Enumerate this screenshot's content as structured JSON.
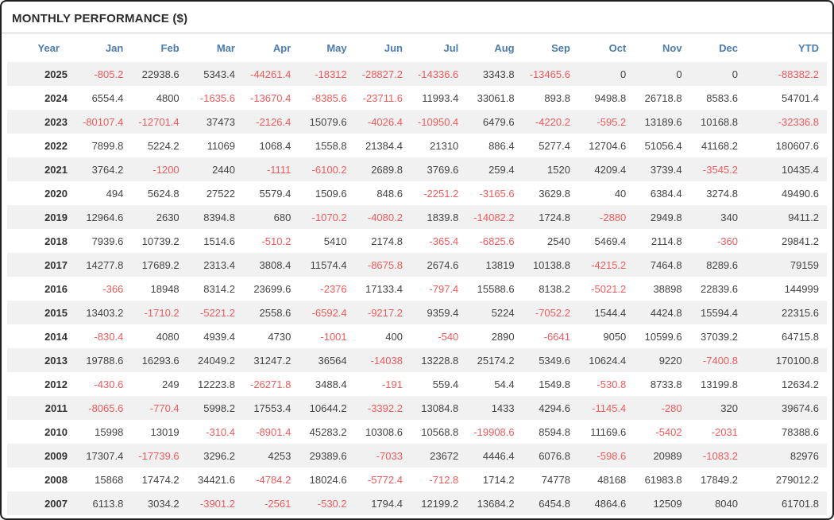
{
  "title": "MONTHLY PERFORMANCE ($)",
  "colors": {
    "header_blue": "#4d7cae",
    "negative_red": "#f15b5b",
    "positive_dark": "#444444",
    "stripe_gray": "#f1f1f1",
    "frame_border": "#1f1f1f"
  },
  "chart_data": {
    "type": "table",
    "title": "MONTHLY PERFORMANCE ($)",
    "columns": [
      "Year",
      "Jan",
      "Feb",
      "Mar",
      "Apr",
      "May",
      "Jun",
      "Jul",
      "Aug",
      "Sep",
      "Oct",
      "Nov",
      "Dec",
      "YTD"
    ],
    "rows": [
      {
        "year": "2025",
        "values": [
          -805.2,
          22938.6,
          5343.4,
          -44261.4,
          -18312,
          -28827.2,
          -14336.6,
          3343.8,
          -13465.6,
          0,
          0,
          0,
          -88382.2
        ]
      },
      {
        "year": "2024",
        "values": [
          6554.4,
          4800,
          -1635.6,
          -13670.4,
          -8385.6,
          -23711.6,
          11993.4,
          33061.8,
          893.8,
          9498.8,
          26718.8,
          8583.6,
          54701.4
        ]
      },
      {
        "year": "2023",
        "values": [
          -80107.4,
          -12701.4,
          37473,
          -2126.4,
          15079.6,
          -4026.4,
          -10950.4,
          6479.6,
          -4220.2,
          -595.2,
          13189.6,
          10168.8,
          -32336.8
        ]
      },
      {
        "year": "2022",
        "values": [
          7899.8,
          5224.2,
          11069,
          1068.4,
          1558.8,
          21384.4,
          21310,
          886.4,
          5277.4,
          12704.6,
          51056.4,
          41168.2,
          180607.6
        ]
      },
      {
        "year": "2021",
        "values": [
          3764.2,
          -1200,
          2440,
          -1111,
          -6100.2,
          2689.8,
          3769.6,
          259.4,
          1520,
          4209.4,
          3739.4,
          -3545.2,
          10435.4
        ]
      },
      {
        "year": "2020",
        "values": [
          494,
          5624.8,
          27522,
          5579.4,
          1509.6,
          848.6,
          -2251.2,
          -3165.6,
          3629.8,
          40,
          6384.4,
          3274.8,
          49490.6
        ]
      },
      {
        "year": "2019",
        "values": [
          12964.6,
          2630,
          8394.8,
          680,
          -1070.2,
          -4080.2,
          1839.8,
          -14082.2,
          1724.8,
          -2880,
          2949.8,
          340,
          9411.2
        ]
      },
      {
        "year": "2018",
        "values": [
          7939.6,
          10739.2,
          1514.6,
          -510.2,
          5410,
          2174.8,
          -365.4,
          -6825.6,
          2540,
          5469.4,
          2114.8,
          -360,
          29841.2
        ]
      },
      {
        "year": "2017",
        "values": [
          14277.8,
          17689.2,
          2313.4,
          3808.4,
          11574.4,
          -8675.8,
          2674.6,
          13819,
          10138.8,
          -4215.2,
          7464.8,
          8289.6,
          79159
        ]
      },
      {
        "year": "2016",
        "values": [
          -366,
          18948,
          8314.2,
          23699.6,
          -2376,
          17133.4,
          -797.4,
          15588.6,
          8138.2,
          -5021.2,
          38898,
          22839.6,
          144999
        ]
      },
      {
        "year": "2015",
        "values": [
          13403.2,
          -1710.2,
          -5221.2,
          2558.6,
          -6592.4,
          -9217.2,
          9359.4,
          5224,
          -7052.2,
          1544.4,
          4424.8,
          15594.4,
          22315.6
        ]
      },
      {
        "year": "2014",
        "values": [
          -830.4,
          4080,
          4939.4,
          4730,
          -1001,
          400,
          -540,
          2890,
          -6641,
          9050,
          10599.6,
          37039.2,
          64715.8
        ]
      },
      {
        "year": "2013",
        "values": [
          19788.6,
          16293.6,
          24049.2,
          31247.2,
          36564,
          -14038,
          13228.8,
          25174.2,
          5349.6,
          10624.4,
          9220,
          -7400.8,
          170100.8
        ]
      },
      {
        "year": "2012",
        "values": [
          -430.6,
          249,
          12223.8,
          -26271.8,
          3488.4,
          -191,
          559.4,
          54.4,
          1549.8,
          -530.8,
          8733.8,
          13199.8,
          12634.2
        ]
      },
      {
        "year": "2011",
        "values": [
          -8065.6,
          -770.4,
          5998.2,
          17553.4,
          10644.2,
          -3392.2,
          13084.8,
          1433,
          4294.6,
          -1145.4,
          -280,
          320,
          39674.6
        ]
      },
      {
        "year": "2010",
        "values": [
          15998,
          13019,
          -310.4,
          -8901.4,
          45283.2,
          10308.6,
          10568.8,
          -19908.6,
          8594.8,
          11169.6,
          -5402,
          -2031,
          78388.6
        ]
      },
      {
        "year": "2009",
        "values": [
          17307.4,
          -17739.6,
          3296.2,
          4253,
          29389.6,
          -7033,
          23672,
          4446.4,
          6076.8,
          -598.6,
          20989,
          -1083.2,
          82976
        ]
      },
      {
        "year": "2008",
        "values": [
          15868,
          17474.2,
          34421.6,
          -4784.2,
          18024.6,
          -5772.4,
          -712.8,
          1714.2,
          74778,
          48168,
          61983.8,
          17849.2,
          279012.2
        ]
      },
      {
        "year": "2007",
        "values": [
          6113.8,
          3034.2,
          -3901.2,
          -2561,
          -530.2,
          1794.4,
          12199.2,
          13684.2,
          6454.8,
          4864.6,
          12509,
          8040,
          61701.8
        ]
      }
    ]
  }
}
